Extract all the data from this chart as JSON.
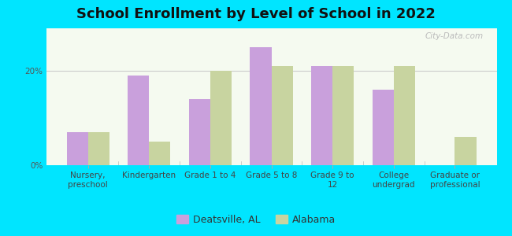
{
  "title": "School Enrollment by Level of School in 2022",
  "categories": [
    "Nursery,\npreschool",
    "Kindergarten",
    "Grade 1 to 4",
    "Grade 5 to 8",
    "Grade 9 to\n12",
    "College\nundergrad",
    "Graduate or\nprofessional"
  ],
  "deatsville": [
    7.0,
    19.0,
    14.0,
    25.0,
    21.0,
    16.0,
    0.0
  ],
  "alabama": [
    7.0,
    5.0,
    20.0,
    21.0,
    21.0,
    21.0,
    6.0
  ],
  "deatsville_color": "#c9a0dc",
  "alabama_color": "#c8d4a0",
  "background_outer": "#00e5ff",
  "background_inner": "#f5faf0",
  "ylim": [
    0,
    29
  ],
  "yticks": [
    0,
    20
  ],
  "ytick_labels": [
    "0%",
    "20%"
  ],
  "bar_width": 0.35,
  "legend_deatsville": "Deatsville, AL",
  "legend_alabama": "Alabama",
  "watermark": "City-Data.com",
  "title_fontsize": 13,
  "tick_fontsize": 7.5,
  "legend_fontsize": 9
}
